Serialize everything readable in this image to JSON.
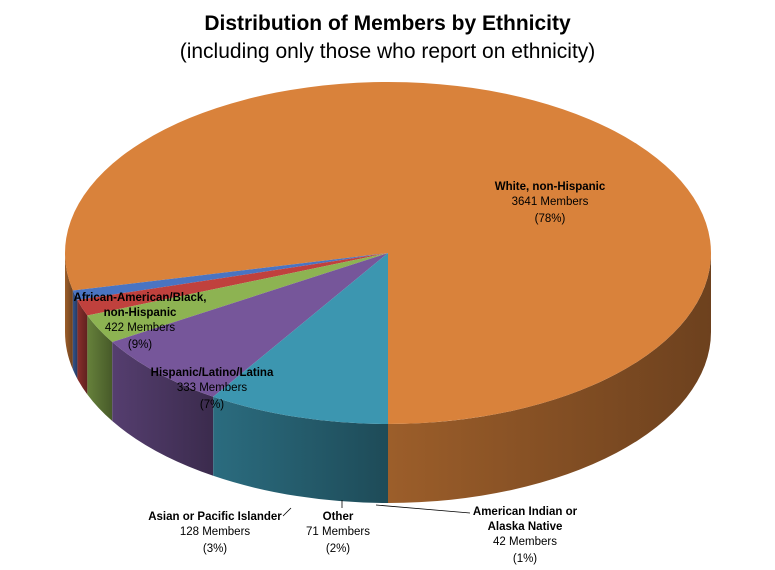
{
  "chart_data": {
    "type": "pie",
    "title": "Distribution of Members by Ethnicity",
    "subtitle": "(including only those who report on ethnicity)",
    "slices": [
      {
        "label_lines": [
          "White, non-Hispanic"
        ],
        "count_text": "3641 Members",
        "pct_text": "(78%)",
        "value": 3641,
        "color": "#D9823B"
      },
      {
        "label_lines": [
          "American Indian or",
          "Alaska Native"
        ],
        "count_text": "42 Members",
        "pct_text": "(1%)",
        "value": 42,
        "color": "#4A74C2"
      },
      {
        "label_lines": [
          "Other"
        ],
        "count_text": "71 Members",
        "pct_text": "(2%)",
        "value": 71,
        "color": "#C0413D"
      },
      {
        "label_lines": [
          "Asian or Pacific Islander"
        ],
        "count_text": "128 Members",
        "pct_text": "(3%)",
        "value": 128,
        "color": "#8DB352"
      },
      {
        "label_lines": [
          "Hispanic/Latino/Latina"
        ],
        "count_text": "333 Members",
        "pct_text": "(7%)",
        "value": 333,
        "color": "#76569A"
      },
      {
        "label_lines": [
          "African-American/Black,",
          "non-Hispanic"
        ],
        "count_text": "422 Members",
        "pct_text": "(9%)",
        "value": 422,
        "color": "#3C96B0"
      }
    ]
  }
}
